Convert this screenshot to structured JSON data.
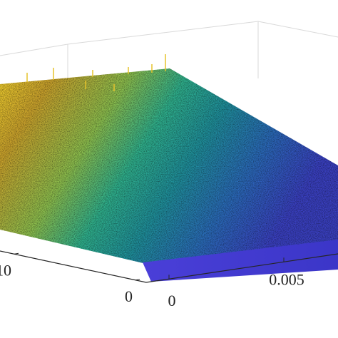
{
  "chart_data": {
    "type": "surface",
    "xticks": [
      0,
      0.005
    ],
    "yticks": [
      0,
      10
    ]
  }
}
